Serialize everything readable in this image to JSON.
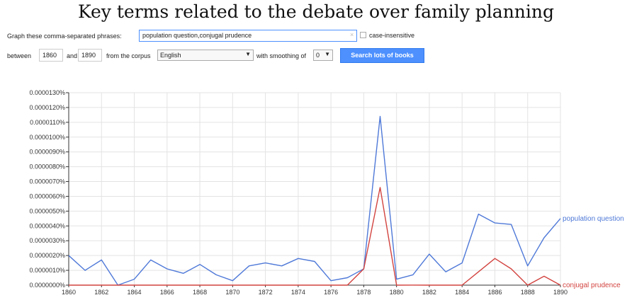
{
  "title": "Key terms related to the debate over family planning",
  "query": {
    "phrases_label": "Graph these comma-separated phrases:",
    "phrases_value": "population question,conjugal prudence",
    "clear_glyph": "×",
    "case_insensitive_label": "case-insensitive",
    "between_label": "between",
    "start_year": "1860",
    "and_label": "and",
    "end_year": "1890",
    "corpus_label": "from the corpus",
    "corpus_value": "English",
    "smoothing_label": "with smoothing of",
    "smoothing_value": "0",
    "search_button": "Search lots of books"
  },
  "colors": {
    "population question": "#4f79d8",
    "conjugal prudence": "#d2433f",
    "grid": "#e3e3e3",
    "axis": "#333333"
  },
  "chart_data": {
    "type": "line",
    "title": "",
    "xlabel": "",
    "ylabel": "",
    "xlim": [
      1860,
      1890
    ],
    "ylim": [
      0,
      1.3e-06
    ],
    "x_ticks": [
      "1860",
      "1862",
      "1864",
      "1866",
      "1868",
      "1870",
      "1872",
      "1874",
      "1876",
      "1878",
      "1880",
      "1882",
      "1884",
      "1886",
      "1888",
      "1890"
    ],
    "y_ticks": [
      "0.0000000%",
      "0.0000010%",
      "0.0000020%",
      "0.0000030%",
      "0.0000040%",
      "0.0000050%",
      "0.0000060%",
      "0.0000070%",
      "0.0000080%",
      "0.0000090%",
      "0.0000100%",
      "0.0000110%",
      "0.0000120%",
      "0.0000130%"
    ],
    "grid": true,
    "legend": "inline labels at right end of lines",
    "x": [
      1860,
      1861,
      1862,
      1863,
      1864,
      1865,
      1866,
      1867,
      1868,
      1869,
      1870,
      1871,
      1872,
      1873,
      1874,
      1875,
      1876,
      1877,
      1878,
      1879,
      1880,
      1881,
      1882,
      1883,
      1884,
      1885,
      1886,
      1887,
      1888,
      1889,
      1890
    ],
    "series": [
      {
        "name": "population question",
        "values": [
          2e-07,
          1e-07,
          1.7e-07,
          0.0,
          4e-08,
          1.7e-07,
          1.1e-07,
          8e-08,
          1.4e-07,
          7e-08,
          3e-08,
          1.3e-07,
          1.5e-07,
          1.3e-07,
          1.8e-07,
          1.6e-07,
          3e-08,
          5e-08,
          1.1e-07,
          1.14e-06,
          4e-08,
          7e-08,
          2.1e-07,
          9e-08,
          1.5e-07,
          4.8e-07,
          4.2e-07,
          4.1e-07,
          1.3e-07,
          3.2e-07,
          4.5e-07
        ]
      },
      {
        "name": "conjugal prudence",
        "values": [
          0.0,
          0.0,
          0.0,
          0.0,
          0.0,
          0.0,
          0.0,
          0.0,
          0.0,
          0.0,
          0.0,
          0.0,
          0.0,
          0.0,
          0.0,
          0.0,
          0.0,
          0.0,
          1.1e-07,
          6.6e-07,
          0.0,
          5e-10,
          0.0,
          0.0,
          0.0,
          9e-08,
          1.8e-07,
          1.1e-07,
          0.0,
          6e-08,
          0.0
        ]
      }
    ]
  }
}
